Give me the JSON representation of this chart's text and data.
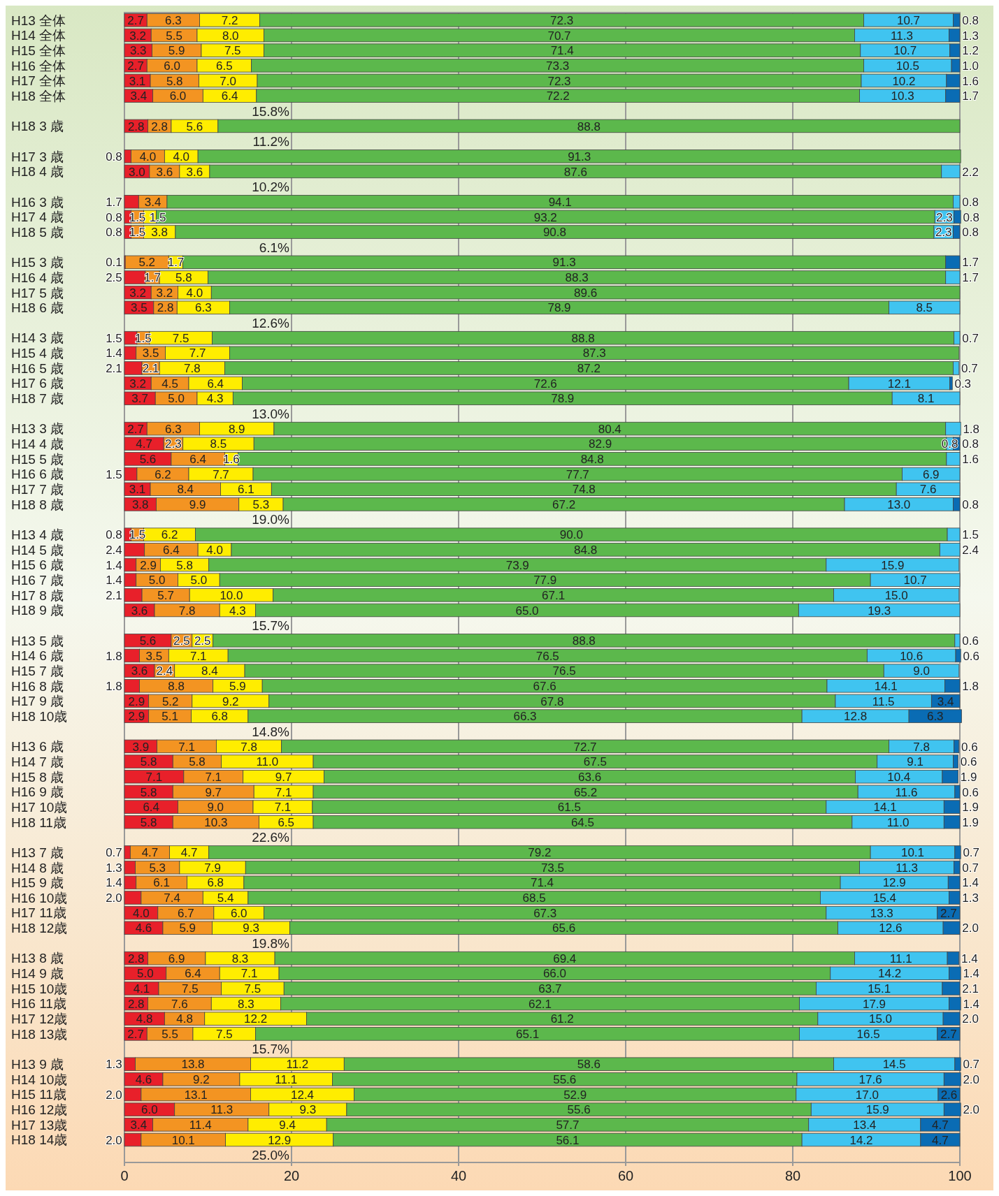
{
  "chart_data": {
    "type": "bar",
    "orientation": "horizontal",
    "stacked": true,
    "grid": "x",
    "xlim": [
      0,
      100
    ],
    "xticks": [
      0,
      20,
      40,
      60,
      80,
      100
    ],
    "categories": [
      "H13 全体",
      "H14 全体",
      "H15 全体",
      "H16 全体",
      "H17 全体",
      "H18 全体",
      null,
      "H18 3 歳",
      null,
      "H17 3 歳",
      "H18 4 歳",
      null,
      "H16 3 歳",
      "H17 4 歳",
      "H18 5 歳",
      null,
      "H15 3 歳",
      "H16 4 歳",
      "H17 5 歳",
      "H18 6 歳",
      null,
      "H14 3 歳",
      "H15 4 歳",
      "H16 5 歳",
      "H17 6 歳",
      "H18 7 歳",
      null,
      "H13 3 歳",
      "H14 4 歳",
      "H15 5 歳",
      "H16 6 歳",
      "H17 7 歳",
      "H18 8 歳",
      null,
      "H13 4 歳",
      "H14 5 歳",
      "H15 6 歳",
      "H16 7 歳",
      "H17 8 歳",
      "H18 9 歳",
      null,
      "H13 5 歳",
      "H14 6 歳",
      "H15 7 歳",
      "H16 8 歳",
      "H17 9 歳",
      "H18 10歳",
      null,
      "H13 6 歳",
      "H14 7 歳",
      "H15 8 歳",
      "H16 9 歳",
      "H17 10歳",
      "H18 11歳",
      null,
      "H13 7 歳",
      "H14 8 歳",
      "H15 9 歳",
      "H16 10歳",
      "H17 11歳",
      "H18 12歳",
      null,
      "H13 8 歳",
      "H14 9 歳",
      "H15 10歳",
      "H16 11歳",
      "H17 12歳",
      "H18 13歳",
      null,
      "H13 9 歳",
      "H14 10歳",
      "H15 11歳",
      "H16 12歳",
      "H17 13歳",
      "H18 14歳",
      null
    ],
    "series": [
      {
        "color": "#e8202a",
        "values": [
          2.7,
          3.2,
          3.3,
          2.7,
          3.1,
          3.4,
          null,
          2.8,
          null,
          0.8,
          3.0,
          null,
          1.7,
          0.8,
          0.8,
          null,
          0.1,
          2.5,
          3.2,
          3.5,
          null,
          1.5,
          1.4,
          2.1,
          3.2,
          3.7,
          null,
          2.7,
          4.7,
          5.6,
          1.5,
          3.1,
          3.8,
          null,
          0.8,
          2.4,
          1.4,
          1.4,
          2.1,
          3.6,
          null,
          5.6,
          1.8,
          3.6,
          1.8,
          2.9,
          2.9,
          null,
          3.9,
          5.8,
          7.1,
          5.8,
          6.4,
          5.8,
          null,
          0.7,
          1.3,
          1.4,
          2.0,
          4.0,
          4.6,
          null,
          2.8,
          5.0,
          4.1,
          2.8,
          4.8,
          2.7,
          null,
          1.3,
          4.6,
          2.0,
          6.0,
          3.4,
          2.0,
          null
        ],
        "value_labels": [
          "2.7",
          "3.2",
          "3.3",
          "2.7",
          "3.1",
          "3.4",
          null,
          "2.8",
          null,
          "0.8",
          "3.0",
          null,
          "1.7",
          "0.8",
          "0.8",
          null,
          "0.1",
          "2.5",
          "3.2",
          "3.5",
          null,
          "1.5",
          "1.4",
          "2.1",
          "3.2",
          "3.7",
          null,
          "2.7",
          "4.7",
          "5.6",
          "1.5",
          "3.1",
          "3.8",
          null,
          "0.8",
          "2.4",
          "1.4",
          "1.4",
          "2.1",
          "3.6",
          null,
          "5.6",
          "1.8",
          "3.6",
          "1.8",
          "2.9",
          "2.9",
          null,
          "3.9",
          "5.8",
          "7.1",
          "5.8",
          "6.4",
          "5.8",
          null,
          "0.7",
          "1.3",
          "1.4",
          "2.0",
          "4.0",
          "4.6",
          null,
          "2.8",
          "5.0",
          "4.1",
          "2.8",
          "4.8",
          "2.7",
          null,
          "1.3",
          "4.6",
          "2.0",
          "6.0",
          "3.4",
          "2.0",
          null
        ]
      },
      {
        "color": "#f39422",
        "values": [
          6.3,
          5.5,
          5.9,
          6.0,
          5.8,
          6.0,
          null,
          2.8,
          null,
          4.0,
          3.6,
          null,
          3.4,
          1.5,
          1.5,
          null,
          5.2,
          1.7,
          3.2,
          2.8,
          null,
          1.5,
          3.5,
          2.1,
          4.5,
          5.0,
          null,
          6.3,
          2.3,
          6.4,
          6.2,
          8.4,
          9.9,
          null,
          1.5,
          6.4,
          2.9,
          5.0,
          5.7,
          7.8,
          null,
          2.5,
          3.5,
          2.4,
          8.8,
          5.2,
          5.1,
          null,
          7.1,
          5.8,
          7.1,
          9.7,
          9.0,
          10.3,
          null,
          4.7,
          5.3,
          6.1,
          7.4,
          6.7,
          5.9,
          null,
          6.9,
          6.4,
          7.5,
          7.6,
          4.8,
          5.5,
          null,
          13.8,
          9.2,
          13.1,
          11.3,
          11.4,
          10.1,
          null
        ],
        "value_labels": [
          "6.3",
          "5.5",
          "5.9",
          "6.0",
          "5.8",
          "6.0",
          null,
          "2.8",
          null,
          "4.0",
          "3.6",
          null,
          "3.4",
          "1.5",
          "1.5",
          null,
          "5.2",
          "1.7",
          "3.2",
          "2.8",
          null,
          "1.5",
          "3.5",
          "2.1",
          "4.5",
          "5.0",
          null,
          "6.3",
          "2.3",
          "6.4",
          "6.2",
          "8.4",
          "9.9",
          null,
          "1.5",
          "6.4",
          "2.9",
          "5.0",
          "5.7",
          "7.8",
          null,
          "2.5",
          "3.5",
          "2.4",
          "8.8",
          "5.2",
          "5.1",
          null,
          "7.1",
          "5.8",
          "7.1",
          "9.7",
          "9.0",
          "10.3",
          null,
          "4.7",
          "5.3",
          "6.1",
          "7.4",
          "6.7",
          "5.9",
          null,
          "6.9",
          "6.4",
          "7.5",
          "7.6",
          "4.8",
          "5.5",
          null,
          "13.8",
          "9.2",
          "13.1",
          "11.3",
          "11.4",
          "10.1",
          null
        ]
      },
      {
        "color": "#ffed00",
        "values": [
          7.2,
          8.0,
          7.5,
          6.5,
          7.0,
          6.4,
          null,
          5.6,
          null,
          4.0,
          3.6,
          null,
          null,
          1.5,
          3.8,
          null,
          1.7,
          5.8,
          4.0,
          6.3,
          null,
          7.5,
          7.7,
          7.8,
          6.4,
          4.3,
          null,
          8.9,
          8.5,
          1.6,
          7.7,
          6.1,
          5.3,
          null,
          6.2,
          4.0,
          5.8,
          5.0,
          10.0,
          4.3,
          null,
          2.5,
          7.1,
          8.4,
          5.9,
          9.2,
          6.8,
          null,
          7.8,
          11.0,
          9.7,
          7.1,
          7.1,
          6.5,
          null,
          4.7,
          7.9,
          6.8,
          5.4,
          6.0,
          9.3,
          null,
          8.3,
          7.1,
          7.5,
          8.3,
          12.2,
          7.5,
          null,
          11.2,
          11.1,
          12.4,
          9.3,
          9.4,
          12.9,
          null
        ],
        "value_labels": [
          "7.2",
          "8.0",
          "7.5",
          "6.5",
          "7.0",
          "6.4",
          null,
          "5.6",
          null,
          "4.0",
          "3.6",
          null,
          null,
          "1.5",
          "3.8",
          null,
          "1.7",
          "5.8",
          "4.0",
          "6.3",
          null,
          "7.5",
          "7.7",
          "7.8",
          "6.4",
          "4.3",
          null,
          "8.9",
          "8.5",
          "1.6",
          "7.7",
          "6.1",
          "5.3",
          null,
          "6.2",
          "4.0",
          "5.8",
          "5.0",
          "10.0",
          "4.3",
          null,
          "2.5",
          "7.1",
          "8.4",
          "5.9",
          "9.2",
          "6.8",
          null,
          "7.8",
          "11.0",
          "9.7",
          "7.1",
          "7.1",
          "6.5",
          null,
          "4.7",
          "7.9",
          "6.8",
          "5.4",
          "6.0",
          "9.3",
          null,
          "8.3",
          "7.1",
          "7.5",
          "8.3",
          "12.2",
          "7.5",
          null,
          "11.2",
          "11.1",
          "12.4",
          "9.3",
          "9.4",
          "12.9",
          null
        ]
      },
      {
        "color": "#5cb84c",
        "values": [
          72.3,
          70.7,
          71.4,
          73.3,
          72.3,
          72.2,
          null,
          88.8,
          null,
          91.3,
          87.6,
          null,
          94.1,
          93.2,
          90.8,
          null,
          91.3,
          88.3,
          89.6,
          78.9,
          null,
          88.8,
          87.3,
          87.2,
          72.6,
          78.9,
          null,
          80.4,
          82.9,
          84.8,
          77.7,
          74.8,
          67.2,
          null,
          90.0,
          84.8,
          73.9,
          77.9,
          67.1,
          65.0,
          null,
          88.8,
          76.5,
          76.5,
          67.6,
          67.8,
          66.3,
          null,
          72.7,
          67.5,
          63.6,
          65.2,
          61.5,
          64.5,
          null,
          79.2,
          73.5,
          71.4,
          68.5,
          67.3,
          65.6,
          null,
          69.4,
          66.0,
          63.7,
          62.1,
          61.2,
          65.1,
          null,
          58.6,
          55.6,
          52.9,
          55.6,
          57.7,
          56.1,
          null
        ],
        "value_labels": [
          "72.3",
          "70.7",
          "71.4",
          "73.3",
          "72.3",
          "72.2",
          null,
          "88.8",
          null,
          "91.3",
          "87.6",
          null,
          "94.1",
          "93.2",
          "90.8",
          null,
          "91.3",
          "88.3",
          "89.6",
          "78.9",
          null,
          "88.8",
          "87.3",
          "87.2",
          "72.6",
          "78.9",
          null,
          "80.4",
          "82.9",
          "84.8",
          "77.7",
          "74.8",
          "67.2",
          null,
          "90.0",
          "84.8",
          "73.9",
          "77.9",
          "67.1",
          "65.0",
          null,
          "88.8",
          "76.5",
          "76.5",
          "67.6",
          "67.8",
          "66.3",
          null,
          "72.7",
          "67.5",
          "63.6",
          "65.2",
          "61.5",
          "64.5",
          null,
          "79.2",
          "73.5",
          "71.4",
          "68.5",
          "67.3",
          "65.6",
          null,
          "69.4",
          "66.0",
          "63.7",
          "62.1",
          "61.2",
          "65.1",
          null,
          "58.6",
          "55.6",
          "52.9",
          "55.6",
          "57.7",
          "56.1",
          null
        ]
      },
      {
        "color": "#40c4f0",
        "values": [
          10.7,
          11.3,
          10.7,
          10.5,
          10.2,
          10.3,
          null,
          null,
          null,
          null,
          2.2,
          null,
          0.8,
          2.3,
          2.3,
          null,
          null,
          1.7,
          null,
          8.5,
          null,
          0.7,
          null,
          0.7,
          12.1,
          8.1,
          null,
          1.8,
          0.8,
          1.6,
          6.9,
          7.6,
          13.0,
          null,
          1.5,
          2.4,
          15.9,
          10.7,
          15.0,
          19.3,
          null,
          0.6,
          10.6,
          9.0,
          14.1,
          11.5,
          12.8,
          null,
          7.8,
          9.1,
          10.4,
          11.6,
          14.1,
          11.0,
          null,
          10.1,
          11.3,
          12.9,
          15.4,
          13.3,
          12.6,
          null,
          11.1,
          14.2,
          15.1,
          17.9,
          15.0,
          16.5,
          null,
          14.5,
          17.6,
          17.0,
          15.9,
          13.4,
          14.2,
          null
        ],
        "value_labels": [
          "10.7",
          "11.3",
          "10.7",
          "10.5",
          "10.2",
          "10.3",
          null,
          null,
          null,
          null,
          "2.2",
          null,
          "0.8",
          "2.3",
          "2.3",
          null,
          null,
          "1.7",
          null,
          "8.5",
          null,
          "0.7",
          null,
          "0.7",
          "12.1",
          "8.1",
          null,
          "1.8",
          "0.8",
          "1.6",
          "6.9",
          "7.6",
          "13.0",
          null,
          "1.5",
          "2.4",
          "15.9",
          "10.7",
          "15.0",
          "19.3",
          null,
          "0.6",
          "10.6",
          "9.0",
          "14.1",
          "11.5",
          "12.8",
          null,
          "7.8",
          "9.1",
          "10.4",
          "11.6",
          "14.1",
          "11.0",
          null,
          "10.1",
          "11.3",
          "12.9",
          "15.4",
          "13.3",
          "12.6",
          null,
          "11.1",
          "14.2",
          "15.1",
          "17.9",
          "15.0",
          "16.5",
          null,
          "14.5",
          "17.6",
          "17.0",
          "15.9",
          "13.4",
          "14.2",
          null
        ]
      },
      {
        "color": "#0a6cb4",
        "values": [
          0.8,
          1.3,
          1.2,
          1.0,
          1.6,
          1.7,
          null,
          null,
          null,
          null,
          null,
          null,
          null,
          0.8,
          0.8,
          null,
          1.7,
          null,
          null,
          null,
          null,
          null,
          null,
          null,
          0.3,
          null,
          null,
          null,
          0.8,
          null,
          null,
          null,
          0.8,
          null,
          null,
          null,
          null,
          null,
          null,
          null,
          null,
          null,
          0.6,
          null,
          1.8,
          3.4,
          6.3,
          null,
          0.6,
          0.6,
          1.9,
          0.6,
          1.9,
          1.9,
          null,
          0.7,
          0.7,
          1.4,
          1.3,
          2.7,
          2.0,
          null,
          1.4,
          1.4,
          2.1,
          1.4,
          2.0,
          2.7,
          null,
          0.7,
          2.0,
          2.6,
          2.0,
          4.7,
          4.7,
          null
        ],
        "value_labels": [
          "0.8",
          "1.3",
          "1.2",
          "1.0",
          "1.6",
          "1.7",
          null,
          null,
          null,
          null,
          null,
          null,
          null,
          "0.8",
          "0.8",
          null,
          "1.7",
          null,
          null,
          null,
          null,
          null,
          null,
          null,
          "0.3",
          null,
          null,
          null,
          "0.8",
          null,
          null,
          null,
          "0.8",
          null,
          null,
          null,
          null,
          null,
          null,
          null,
          null,
          null,
          "0.6",
          null,
          "1.8",
          "3.4",
          "6.3",
          null,
          "0.6",
          "0.6",
          "1.9",
          "0.6",
          "1.9",
          "1.9",
          null,
          "0.7",
          "0.7",
          "1.4",
          "1.3",
          "2.7",
          "2.0",
          null,
          "1.4",
          "1.4",
          "2.1",
          "1.4",
          "2.0",
          "2.7",
          null,
          "0.7",
          "2.0",
          "2.6",
          "2.0",
          "4.7",
          "4.7",
          null
        ]
      }
    ],
    "annotations": [
      "15.8%",
      "11.2%",
      "10.2%",
      "6.1%",
      "12.6%",
      "13.0%",
      "19.0%",
      "15.7%",
      "14.8%",
      "22.6%",
      "19.8%",
      "15.7%",
      "25.0%"
    ]
  }
}
